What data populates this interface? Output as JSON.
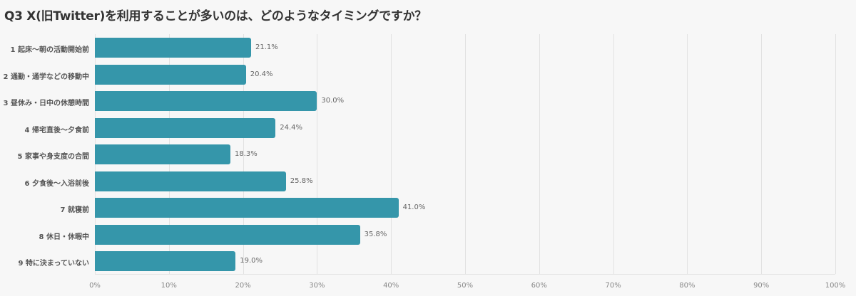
{
  "header": {
    "title": "Q3 X(旧Twitter)を利用することが多いのは、どのようなタイミングですか？"
  },
  "colors": {
    "bar": "#3596aa",
    "background": "#f7f7f7",
    "grid": "#e2e2e2"
  },
  "chart_data": {
    "type": "bar",
    "orientation": "horizontal",
    "title": "Q3 X(旧Twitter)を利用することが多いのは、どのようなタイミングですか？",
    "xlabel": "",
    "ylabel": "",
    "xlim": [
      0,
      100
    ],
    "grid": true,
    "legend": null,
    "categories": [
      "1 起床〜朝の活動開始前",
      "2 通勤・通学などの移動中",
      "3 昼休み・日中の休憩時間",
      "4 帰宅直後〜夕食前",
      "5 家事や身支度の合間",
      "6 夕食後〜入浴前後",
      "7 就寝前",
      "8 休日・休暇中",
      "9 特に決まっていない"
    ],
    "values": [
      21.1,
      20.4,
      30.0,
      24.4,
      18.3,
      25.8,
      41.0,
      35.8,
      19.0
    ],
    "value_labels": [
      "21.1%",
      "20.4%",
      "30.0%",
      "24.4%",
      "18.3%",
      "25.8%",
      "41.0%",
      "35.8%",
      "19.0%"
    ],
    "ticks": [
      "0%",
      "10%",
      "20%",
      "30%",
      "40%",
      "50%",
      "60%",
      "70%",
      "80%",
      "90%",
      "100%"
    ]
  }
}
